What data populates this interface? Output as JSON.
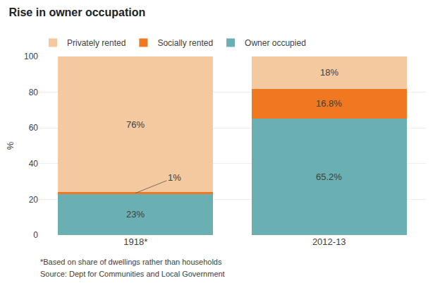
{
  "chart_data": {
    "type": "bar",
    "title": "Rise in owner occupation",
    "categories": [
      "1918*",
      "2012-13"
    ],
    "series": [
      {
        "name": "Owner occupied",
        "color": "#6AAFB2",
        "values": [
          23,
          65.2
        ],
        "value_labels": [
          "23%",
          "65.2%"
        ]
      },
      {
        "name": "Socially rented",
        "color": "#F07820",
        "values": [
          1,
          16.8
        ],
        "value_labels": [
          "1%",
          "16.8%"
        ]
      },
      {
        "name": "Privately rented",
        "color": "#F5C9A0",
        "values": [
          76,
          18
        ],
        "value_labels": [
          "76%",
          "18%"
        ]
      }
    ],
    "stacked": true,
    "data_labels": true,
    "ylabel": "%",
    "ylim": [
      0,
      100
    ],
    "yticks": [
      0,
      20,
      40,
      60,
      80,
      100
    ],
    "grid": true,
    "legend": "top",
    "annotations": [
      "*Based on share of dwellings rather than households",
      "Source: Dept for Communities and Local Government"
    ]
  }
}
